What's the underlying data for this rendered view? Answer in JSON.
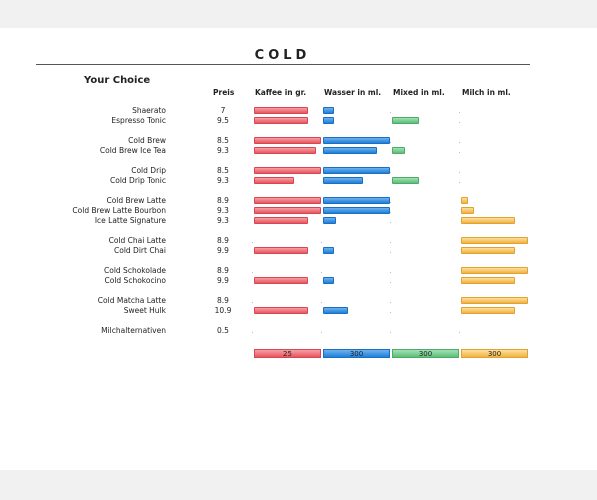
{
  "title": "COLD",
  "heading": "Your Choice",
  "chart_data": {
    "type": "bar",
    "columns": [
      {
        "key": "kaffee",
        "label": "Kaffee in gr.",
        "max": 25,
        "color": "#e9545f"
      },
      {
        "key": "wasser",
        "label": "Wasser in ml.",
        "max": 300,
        "color": "#1f7fd8"
      },
      {
        "key": "mixed",
        "label": "Mixed in ml.",
        "max": 300,
        "color": "#5cbf78"
      },
      {
        "key": "milch",
        "label": "Milch in ml.",
        "max": 300,
        "color": "#f2b33f"
      }
    ],
    "price_label": "Preis",
    "scale_labels": [
      "25",
      "300",
      "300",
      "300"
    ],
    "groups": [
      [
        {
          "name": "Shaerato",
          "price": "7",
          "kaffee": 20,
          "wasser": 50,
          "mixed": 0,
          "milch": 0
        },
        {
          "name": "Espresso Tonic",
          "price": "9.5",
          "kaffee": 20,
          "wasser": 50,
          "mixed": 120,
          "milch": 0
        }
      ],
      [
        {
          "name": "Cold Brew",
          "price": "8.5",
          "kaffee": 25,
          "wasser": 300,
          "mixed": 0,
          "milch": 0
        },
        {
          "name": "Cold Brew Ice Tea",
          "price": "9.3",
          "kaffee": 23,
          "wasser": 240,
          "mixed": 60,
          "milch": 0
        }
      ],
      [
        {
          "name": "Cold Drip",
          "price": "8.5",
          "kaffee": 25,
          "wasser": 300,
          "mixed": 0,
          "milch": 0
        },
        {
          "name": "Cold Drip Tonic",
          "price": "9.3",
          "kaffee": 15,
          "wasser": 180,
          "mixed": 120,
          "milch": 0
        }
      ],
      [
        {
          "name": "Cold Brew Latte",
          "price": "8.9",
          "kaffee": 25,
          "wasser": 300,
          "mixed": 0,
          "milch": 30
        },
        {
          "name": "Cold Brew Latte Bourbon",
          "price": "9.3",
          "kaffee": 25,
          "wasser": 300,
          "mixed": 0,
          "milch": 60
        },
        {
          "name": "Ice Latte Signature",
          "price": "9.3",
          "kaffee": 20,
          "wasser": 60,
          "mixed": 0,
          "milch": 240
        }
      ],
      [
        {
          "name": "Cold Chai Latte",
          "price": "8.9",
          "kaffee": 0,
          "wasser": 0,
          "mixed": 0,
          "milch": 300
        },
        {
          "name": "Cold Dirt Chai",
          "price": "9.9",
          "kaffee": 20,
          "wasser": 50,
          "mixed": 0,
          "milch": 240
        }
      ],
      [
        {
          "name": "Cold Schokolade",
          "price": "8.9",
          "kaffee": 0,
          "wasser": 0,
          "mixed": 0,
          "milch": 300
        },
        {
          "name": "Cold Schokocino",
          "price": "9.9",
          "kaffee": 20,
          "wasser": 50,
          "mixed": 0,
          "milch": 240
        }
      ],
      [
        {
          "name": "Cold Matcha Latte",
          "price": "8.9",
          "kaffee": 0,
          "wasser": 0,
          "mixed": 0,
          "milch": 300
        },
        {
          "name": "Sweet Hulk",
          "price": "10.9",
          "kaffee": 20,
          "wasser": 110,
          "mixed": 0,
          "milch": 240
        }
      ],
      [
        {
          "name": "Milchalternativen",
          "price": "0.5",
          "kaffee": 0,
          "wasser": 0,
          "mixed": 0,
          "milch": 0
        }
      ]
    ]
  }
}
